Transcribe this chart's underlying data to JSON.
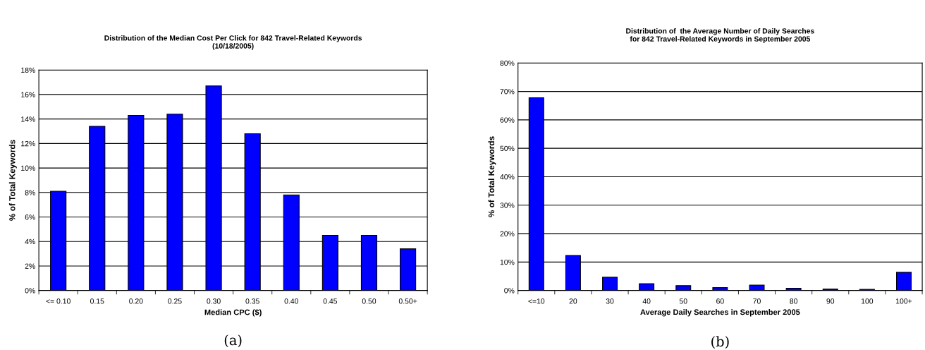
{
  "chart_data": [
    {
      "type": "bar",
      "title": "Distribution of the Median Cost Per Click for 842 Travel-Related Keywords\n(10/18/2005)",
      "xlabel": "Median CPC ($)",
      "ylabel": "% of Total Keywords",
      "categories": [
        "<= 0.10",
        "0.15",
        "0.20",
        "0.25",
        "0.30",
        "0.35",
        "0.40",
        "0.45",
        "0.50",
        "0.50+"
      ],
      "values": [
        8.1,
        13.4,
        14.3,
        14.4,
        16.7,
        12.8,
        7.8,
        4.5,
        4.5,
        3.4
      ],
      "color": "#0000ff",
      "ylim": [
        0,
        18
      ],
      "yticks": [
        {
          "value": 0,
          "label": "0%"
        },
        {
          "value": 2,
          "label": "2%"
        },
        {
          "value": 4,
          "label": "4%"
        },
        {
          "value": 6,
          "label": "6%"
        },
        {
          "value": 8,
          "label": "8%"
        },
        {
          "value": 10,
          "label": "10%"
        },
        {
          "value": 12,
          "label": "12%"
        },
        {
          "value": 14,
          "label": "14%"
        },
        {
          "value": 16,
          "label": "16%"
        },
        {
          "value": 18,
          "label": "18%"
        }
      ],
      "grid": "y",
      "annotations": [
        "(a)"
      ]
    },
    {
      "type": "bar",
      "title": "Distribution of  the Average Number of Daily Searches\nfor 842 Travel-Related Keywords in September 2005",
      "xlabel": "Average Daily Searches in September 2005",
      "ylabel": "% of Total Keywords",
      "categories": [
        "<=10",
        "20",
        "30",
        "40",
        "50",
        "60",
        "70",
        "80",
        "90",
        "100",
        "100+"
      ],
      "values": [
        67.8,
        12.3,
        4.7,
        2.4,
        1.7,
        1.0,
        1.9,
        0.8,
        0.5,
        0.4,
        6.4
      ],
      "color": "#0000ff",
      "ylim": [
        0,
        80
      ],
      "yticks": [
        {
          "value": 0,
          "label": "0%"
        },
        {
          "value": 10,
          "label": "10%"
        },
        {
          "value": 20,
          "label": "20%"
        },
        {
          "value": 30,
          "label": "30%"
        },
        {
          "value": 40,
          "label": "40%"
        },
        {
          "value": 50,
          "label": "50%"
        },
        {
          "value": 60,
          "label": "60%"
        },
        {
          "value": 70,
          "label": "70%"
        },
        {
          "value": 80,
          "label": "80%"
        }
      ],
      "grid": "y",
      "annotations": [
        "(b)"
      ]
    }
  ]
}
